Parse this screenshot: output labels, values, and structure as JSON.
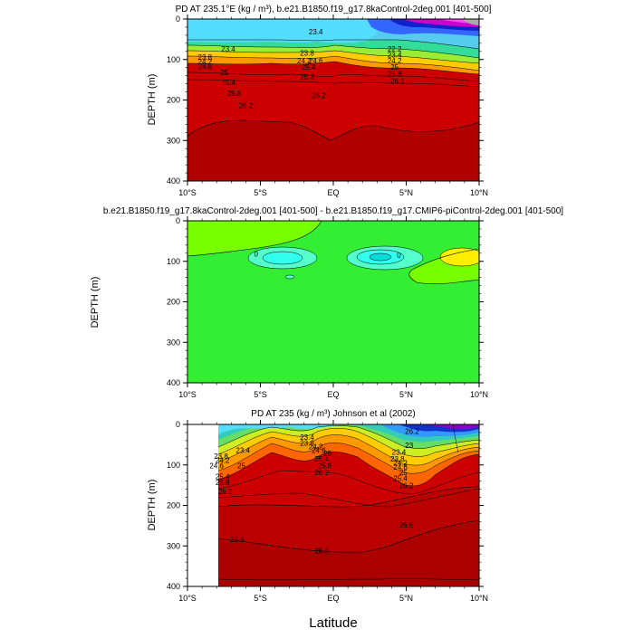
{
  "x_label": "Latitude",
  "chart_data": [
    {
      "type": "contour",
      "title": "PD AT 235.1°E (kg / m³), b.e21.B1850.f19_g17.8kaControl-2deg.001 [401-500]",
      "ylabel": "DEPTH (m)",
      "xlim": [
        -10,
        10
      ],
      "ylim": [
        0,
        400
      ],
      "xticks": [
        "10°S",
        "5°S",
        "EQ",
        "5°N",
        "10°N"
      ],
      "yticks": [
        "0",
        "100",
        "200",
        "300",
        "400"
      ],
      "contour_labels": [
        {
          "text": "23.4",
          "x": -7.2,
          "y": 80
        },
        {
          "text": "23.4",
          "x": -1.2,
          "y": 38
        },
        {
          "text": "23.8",
          "x": -8.8,
          "y": 100
        },
        {
          "text": "24.2",
          "x": -8.8,
          "y": 112
        },
        {
          "text": "24.6",
          "x": -8.8,
          "y": 124
        },
        {
          "text": "25",
          "x": -7.5,
          "y": 138
        },
        {
          "text": "25.4",
          "x": -7.2,
          "y": 163
        },
        {
          "text": "25.8",
          "x": -6.8,
          "y": 190
        },
        {
          "text": "26.2",
          "x": -6.0,
          "y": 220
        },
        {
          "text": "26.2",
          "x": -1.0,
          "y": 195
        },
        {
          "text": "23.8",
          "x": -1.8,
          "y": 90
        },
        {
          "text": "24.2",
          "x": -2.0,
          "y": 110
        },
        {
          "text": "24.6",
          "x": -1.2,
          "y": 110
        },
        {
          "text": "25.4",
          "x": -1.7,
          "y": 125
        },
        {
          "text": "25.8",
          "x": -1.8,
          "y": 150
        },
        {
          "text": "22.2",
          "x": 4.2,
          "y": 80
        },
        {
          "text": "23.4",
          "x": 4.2,
          "y": 95
        },
        {
          "text": "24.2",
          "x": 4.2,
          "y": 110
        },
        {
          "text": "25",
          "x": 4.2,
          "y": 125
        },
        {
          "text": "25.8",
          "x": 4.2,
          "y": 142
        },
        {
          "text": "26.2",
          "x": 4.4,
          "y": 160
        }
      ]
    },
    {
      "type": "contour",
      "title": "b.e21.B1850.f19_g17.8kaControl-2deg.001 [401-500] - b.e21.B1850.f19_g17.CMIP6-piControl-2deg.001 [401-500]",
      "ylabel": "DEPTH (m)",
      "xlim": [
        -10,
        10
      ],
      "ylim": [
        0,
        400
      ],
      "xticks": [
        "10°S",
        "5°S",
        "EQ",
        "5°N",
        "10°N"
      ],
      "yticks": [
        "0",
        "100",
        "200",
        "300",
        "400"
      ],
      "contour_labels": [
        {
          "text": "0",
          "x": -5.3,
          "y": 88
        },
        {
          "text": "0",
          "x": 4.5,
          "y": 92
        }
      ]
    },
    {
      "type": "contour",
      "title": "PD AT 235 (kg / m³) Johnson et al (2002)",
      "ylabel": "DEPTH (m)",
      "xlim": [
        -10,
        10
      ],
      "ylim": [
        0,
        400
      ],
      "xticks": [
        "10°S",
        "5°S",
        "EQ",
        "5°N",
        "10°N"
      ],
      "yticks": [
        "0",
        "100",
        "200",
        "300",
        "400"
      ],
      "contour_labels": [
        {
          "text": "23.4",
          "x": -6.2,
          "y": 70
        },
        {
          "text": "23.8",
          "x": -7.7,
          "y": 85
        },
        {
          "text": "24.2",
          "x": -7.6,
          "y": 95
        },
        {
          "text": "24.6",
          "x": -8.0,
          "y": 108
        },
        {
          "text": "25",
          "x": -6.3,
          "y": 108
        },
        {
          "text": "25.4",
          "x": -7.6,
          "y": 135
        },
        {
          "text": "25.8",
          "x": -7.6,
          "y": 150
        },
        {
          "text": "26.2",
          "x": -7.4,
          "y": 172
        },
        {
          "text": "23.4",
          "x": -1.8,
          "y": 38
        },
        {
          "text": "23.8",
          "x": -1.8,
          "y": 52
        },
        {
          "text": "24.2",
          "x": -1.2,
          "y": 62
        },
        {
          "text": "24.6",
          "x": -1.0,
          "y": 70
        },
        {
          "text": "25",
          "x": -0.4,
          "y": 78
        },
        {
          "text": "25.4",
          "x": -0.8,
          "y": 92
        },
        {
          "text": "25.8",
          "x": -0.6,
          "y": 108
        },
        {
          "text": "26.2",
          "x": -0.8,
          "y": 125
        },
        {
          "text": "23",
          "x": 5.2,
          "y": 58
        },
        {
          "text": "23.4",
          "x": 4.5,
          "y": 75
        },
        {
          "text": "23.8",
          "x": 4.4,
          "y": 92
        },
        {
          "text": "24.2",
          "x": 4.6,
          "y": 102
        },
        {
          "text": "24.6",
          "x": 4.6,
          "y": 112
        },
        {
          "text": "25",
          "x": 4.8,
          "y": 125
        },
        {
          "text": "25.4",
          "x": 4.6,
          "y": 140
        },
        {
          "text": "26.2",
          "x": 5.0,
          "y": 158
        },
        {
          "text": "25.6",
          "x": -6.6,
          "y": 290
        },
        {
          "text": "26.6",
          "x": -0.8,
          "y": 318
        },
        {
          "text": "26.6",
          "x": 5.0,
          "y": 255
        },
        {
          "text": "26.2",
          "x": 5.4,
          "y": 24
        }
      ]
    }
  ]
}
